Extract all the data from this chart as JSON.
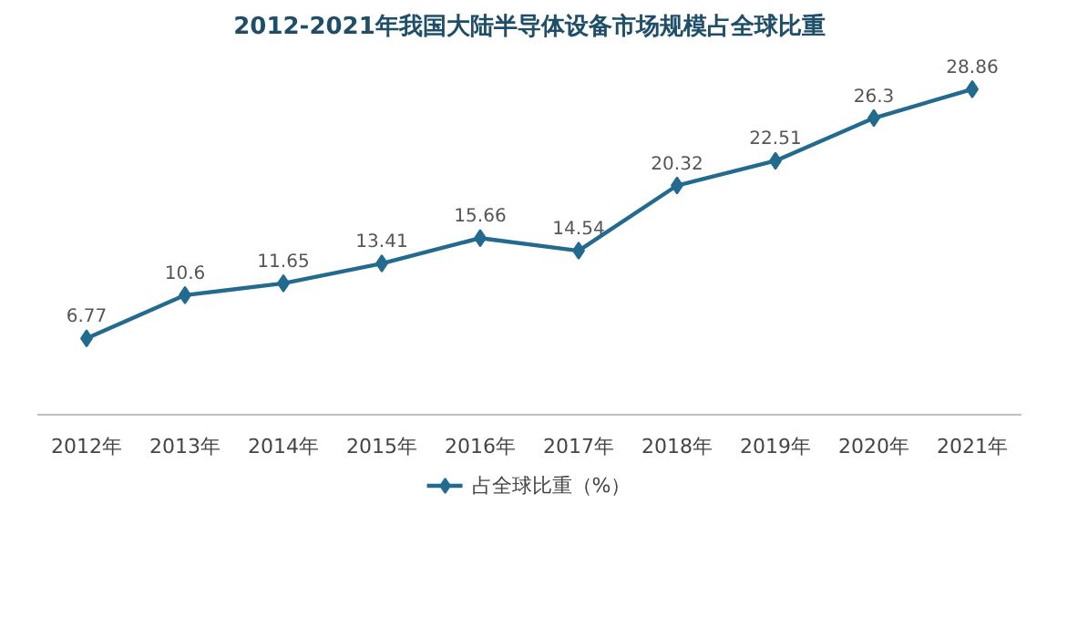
{
  "chart_data": {
    "type": "line",
    "title": "2012-2021年我国大陆半导体设备市场规模占全球比重",
    "categories": [
      "2012年",
      "2013年",
      "2014年",
      "2015年",
      "2016年",
      "2017年",
      "2018年",
      "2019年",
      "2020年",
      "2021年"
    ],
    "series": [
      {
        "name": "占全球比重（%）",
        "color": "#236a8f",
        "values": [
          6.77,
          10.6,
          11.65,
          13.41,
          15.66,
          14.54,
          20.32,
          22.51,
          26.3,
          28.86
        ]
      }
    ],
    "data_labels": true,
    "marker": "diamond",
    "line_style": "solid",
    "legend": "bottom",
    "tick_labels": "x"
  }
}
